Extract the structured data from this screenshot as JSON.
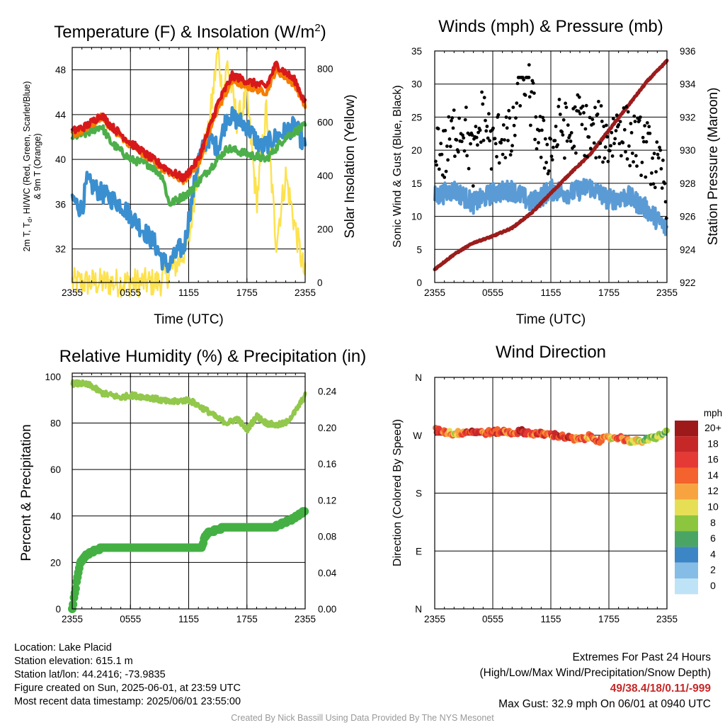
{
  "colors": {
    "temp": "#d7191c",
    "dewpoint": "#4daf4a",
    "heatindex": "#3a8fd0",
    "t9m": "#f57c00",
    "insolation": "#fde24f",
    "sonic_wind": "#5b9bd5",
    "gust": "#000000",
    "pressure": "#9b1c1c",
    "rh": "#92c84b",
    "precip": "#44b044"
  },
  "x_ticks": [
    "2355",
    "0555",
    "1155",
    "1755",
    "2355"
  ],
  "panels": {
    "temperature": {
      "title": "Temperature (F) & Insolation (W/m",
      "title_sup": "2",
      "title_tail": ")",
      "xlabel": "Time (UTC)",
      "ylabel_left_line1": "2m T, T",
      "ylabel_left_sub": "d",
      "ylabel_left_line1_tail": ", HI/WC (Red, Green, Scarlet/Blue)",
      "ylabel_left_line2": "& 9m T (Orange)",
      "ylabel_right": "Solar Insolation (Yellow)",
      "yticks_left": [
        "32",
        "36",
        "40",
        "44",
        "48"
      ],
      "yticks_right": [
        "0",
        "200",
        "400",
        "600",
        "800"
      ]
    },
    "winds": {
      "title": "Winds (mph) & Pressure (mb)",
      "xlabel": "Time (UTC)",
      "ylabel_left": "Sonic Wind & Gust (Blue, Black)",
      "ylabel_right": "Station Pressure (Maroon)",
      "yticks_left": [
        "0",
        "5",
        "10",
        "15",
        "20",
        "25",
        "30",
        "35"
      ],
      "yticks_right": [
        "922",
        "924",
        "926",
        "928",
        "930",
        "932",
        "934",
        "936"
      ]
    },
    "humidity": {
      "title": "Relative Humidity (%) & Precipitation (in)",
      "ylabel_left": "Percent & Precipitation",
      "yticks_left": [
        "0",
        "20",
        "40",
        "60",
        "80",
        "100"
      ],
      "yticks_right": [
        "0.00",
        "0.04",
        "0.08",
        "0.12",
        "0.16",
        "0.20",
        "0.24"
      ]
    },
    "direction": {
      "title": "Wind Direction",
      "ylabel_left": "Direction (Colored By Speed)",
      "yticks_left": [
        "N",
        "E",
        "S",
        "W",
        "N"
      ],
      "legend_title": "mph",
      "legend_labels": [
        "20+",
        "18",
        "16",
        "14",
        "12",
        "10",
        "8",
        "6",
        "4",
        "2",
        "0"
      ],
      "legend_colors": [
        "#9e1a1a",
        "#c62828",
        "#e53935",
        "#f4622d",
        "#f7a440",
        "#e6df55",
        "#8cc63f",
        "#4aa564",
        "#3d86c6",
        "#85bde6",
        "#bfe3f6"
      ]
    }
  },
  "chart_data": [
    {
      "type": "line",
      "title": "Temperature (F) & Insolation (W/m2)",
      "x_label": "Time (UTC)",
      "x_ticks": [
        "2355",
        "0555",
        "1155",
        "1755",
        "2355"
      ],
      "x_hours": [
        0,
        3,
        6,
        9,
        12,
        15,
        18,
        21,
        24
      ],
      "ylim_left": [
        29,
        50
      ],
      "ylim_right": [
        0,
        880
      ],
      "series": [
        {
          "name": "2m T (Red)",
          "axis": "left",
          "x": [
            0,
            1.5,
            3,
            4,
            6,
            8,
            10,
            11.5,
            13,
            15,
            16.5,
            18,
            20,
            21,
            23,
            24
          ],
          "y": [
            42.5,
            43,
            44,
            43,
            41.5,
            40.2,
            39,
            38.3,
            40,
            45,
            47.5,
            47,
            46.5,
            48.5,
            47,
            45
          ]
        },
        {
          "name": "9m T (Orange)",
          "axis": "left",
          "x": [
            0,
            1.5,
            3,
            4,
            6,
            8,
            10,
            11.5,
            13,
            15,
            16.5,
            18,
            20,
            21,
            23,
            24
          ],
          "y": [
            42.2,
            42.7,
            43.8,
            42.8,
            41.3,
            40,
            38.8,
            38.1,
            39.6,
            44.6,
            47,
            46.5,
            46,
            48,
            46.6,
            44.8
          ]
        },
        {
          "name": "Td (Green)",
          "axis": "left",
          "x": [
            0,
            1.5,
            3,
            4,
            6,
            8,
            9.3,
            10,
            12,
            13,
            15,
            16,
            18,
            20,
            22,
            24
          ],
          "y": [
            42,
            42.3,
            43,
            41.5,
            40,
            39.5,
            38.5,
            36,
            37,
            38,
            40,
            41,
            40.5,
            40,
            42,
            43
          ]
        },
        {
          "name": "HI/WC (Blue)",
          "axis": "left",
          "x": [
            0,
            1,
            1.5,
            3,
            5,
            7,
            8.5,
            9.3,
            10,
            11,
            11.5,
            13,
            14,
            15,
            16,
            18,
            19.5,
            21,
            23,
            24
          ],
          "y": [
            36.5,
            35.5,
            38,
            37,
            36,
            34,
            32.5,
            31,
            30.5,
            32,
            32,
            40,
            42,
            41,
            44,
            43,
            41,
            42,
            43,
            41
          ]
        },
        {
          "name": "Solar Insolation (Yellow)",
          "axis": "right",
          "x": [
            0,
            9,
            10,
            11,
            12,
            13,
            14,
            15,
            15.5,
            16,
            17,
            18,
            19,
            20,
            21,
            22,
            23,
            24
          ],
          "y": [
            0,
            0,
            40,
            80,
            150,
            450,
            550,
            870,
            700,
            820,
            600,
            700,
            300,
            650,
            150,
            400,
            200,
            20
          ]
        }
      ]
    },
    {
      "type": "line",
      "title": "Winds (mph) & Pressure (mb)",
      "x_label": "Time (UTC)",
      "ylim_left": [
        0,
        35
      ],
      "ylim_right": [
        922,
        936
      ],
      "series": [
        {
          "name": "Sonic Wind (Blue)",
          "axis": "left",
          "x": [
            0,
            2,
            4,
            6,
            8,
            10,
            12,
            14,
            16,
            18,
            20,
            22,
            24
          ],
          "y": [
            13,
            14,
            12,
            13.5,
            14,
            12,
            14,
            13.5,
            14.5,
            12.5,
            13,
            11,
            8
          ]
        },
        {
          "name": "Pressure (Maroon)",
          "axis": "right",
          "x": [
            0,
            2,
            4,
            6,
            8,
            10,
            12,
            14,
            16,
            18,
            20,
            22,
            24
          ],
          "y": [
            922.8,
            923.7,
            924.4,
            924.8,
            925.3,
            926.2,
            927.4,
            928.6,
            929.7,
            931.2,
            932.7,
            934.2,
            935.4
          ]
        },
        {
          "name": "Gust (Black)",
          "axis": "left",
          "type": "scatter",
          "x": [
            0,
            1,
            2,
            3,
            4,
            5,
            6,
            7,
            8,
            9,
            10,
            11,
            12,
            13,
            14,
            15,
            16,
            17,
            18,
            19,
            20,
            21,
            22,
            23,
            24
          ],
          "y": [
            22,
            19,
            23,
            24,
            18,
            26,
            20,
            23,
            21,
            32.9,
            27,
            21,
            20,
            24,
            22,
            25,
            22,
            23,
            21,
            24,
            22,
            21,
            20,
            17,
            14
          ]
        }
      ]
    },
    {
      "type": "line",
      "title": "Relative Humidity (%) & Precipitation (in)",
      "ylim_left": [
        0,
        100
      ],
      "ylim_right": [
        0,
        0.26
      ],
      "series": [
        {
          "name": "Relative Humidity",
          "axis": "left",
          "x": [
            0,
            1,
            2,
            3,
            4,
            5,
            6,
            8,
            10,
            12,
            14,
            15,
            16,
            17,
            18,
            19,
            20,
            21,
            22,
            23,
            24
          ],
          "y": [
            97,
            97,
            96,
            93,
            92,
            91,
            92,
            91,
            89,
            90,
            85,
            82,
            80,
            82,
            77,
            83,
            80,
            79,
            80,
            85,
            92
          ]
        },
        {
          "name": "Precipitation",
          "axis": "right",
          "x": [
            0,
            0.3,
            0.8,
            1.5,
            2.5,
            3,
            13.3,
            13.7,
            14,
            16,
            21,
            22.5,
            24
          ],
          "y": [
            0,
            0.02,
            0.05,
            0.06,
            0.065,
            0.067,
            0.067,
            0.08,
            0.084,
            0.091,
            0.091,
            0.098,
            0.108
          ]
        }
      ]
    },
    {
      "type": "scatter",
      "title": "Wind Direction",
      "y_label": "Direction (Colored By Speed)",
      "y_ticks": [
        "N",
        "E",
        "S",
        "W",
        "N"
      ],
      "series": [
        {
          "name": "Wind Direction",
          "x": [
            0,
            1,
            2,
            3,
            4,
            5,
            6,
            7,
            8,
            9,
            10,
            11,
            12,
            13,
            14,
            15,
            16,
            17,
            18,
            19,
            20,
            21,
            22,
            23,
            24
          ],
          "y_deg": [
            278,
            276,
            272,
            275,
            276,
            274,
            275,
            276,
            274,
            276,
            273,
            272,
            271,
            269,
            265,
            263,
            268,
            262,
            266,
            267,
            262,
            260,
            263,
            268,
            275
          ],
          "speed_mph": [
            16,
            14,
            10,
            15,
            17,
            14,
            16,
            15,
            13,
            18,
            14,
            16,
            15,
            17,
            16,
            14,
            12,
            16,
            10,
            14,
            12,
            10,
            8,
            10,
            6
          ]
        }
      ]
    }
  ],
  "footer": {
    "location": "Location: Lake Placid",
    "elevation": "Station elevation: 615.1 m",
    "latlon": "Station lat/lon: 44.2416; -73.9835",
    "created": "Figure created on Sun, 2025-06-01, at 23:59 UTC",
    "recent": "Most recent data timestamp: 2025/06/01 23:55:00",
    "extremes_title": "Extremes For Past 24 Hours",
    "extremes_sub": "(High/Low/Max Wind/Precipitation/Snow Depth)",
    "extremes_values": "49/38.4/18/0.11/-999",
    "max_gust": "Max Gust: 32.9 mph On 06/01 at 0940 UTC",
    "credit": "Created By Nick Bassill Using Data Provided By The NYS Mesonet"
  }
}
